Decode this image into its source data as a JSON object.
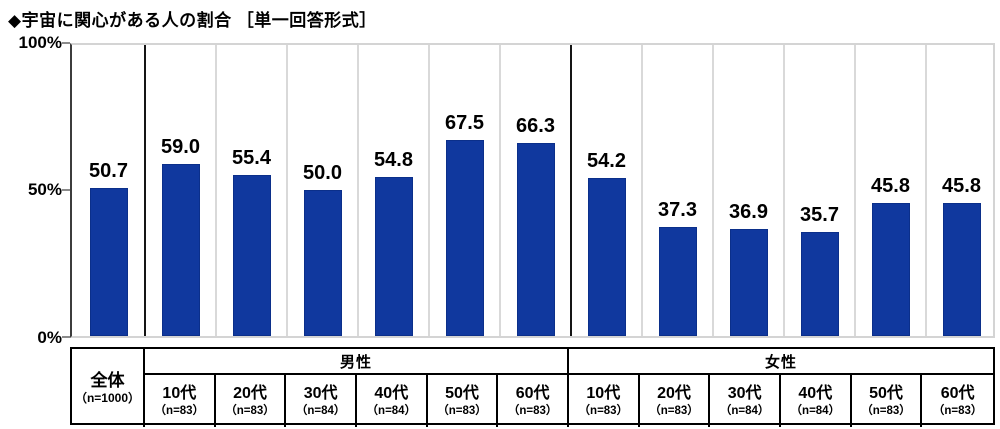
{
  "title": "◆宇宙に関心がある人の割合 ［単一回答形式］",
  "y_axis": {
    "ticks": [
      "100%",
      "50%",
      "0%"
    ]
  },
  "chart_data": {
    "type": "bar",
    "title": "◆宇宙に関心がある人の割合 ［単一回答形式］",
    "xlabel": "",
    "ylabel": "",
    "ylim": [
      0,
      100
    ],
    "ytick_labels": [
      "100%",
      "50%",
      "0%"
    ],
    "grid": "vertical-only",
    "bar_color": "#10389E",
    "categories": [
      "全体",
      "男性 10代",
      "男性 20代",
      "男性 30代",
      "男性 40代",
      "男性 50代",
      "男性 60代",
      "女性 10代",
      "女性 20代",
      "女性 30代",
      "女性 40代",
      "女性 50代",
      "女性 60代"
    ],
    "values": [
      50.7,
      59.0,
      55.4,
      50.0,
      54.8,
      67.5,
      66.3,
      54.2,
      37.3,
      36.9,
      35.7,
      45.8,
      45.8
    ],
    "value_labels": [
      "50.7",
      "59.0",
      "55.4",
      "50.0",
      "54.8",
      "67.5",
      "66.3",
      "54.2",
      "37.3",
      "36.9",
      "35.7",
      "45.8",
      "45.8"
    ]
  },
  "axis_table": {
    "overall": {
      "label": "全体",
      "n": "（n=1000）"
    },
    "groups": [
      {
        "label": "男性",
        "columns": [
          {
            "age": "10代",
            "n": "（n=83）"
          },
          {
            "age": "20代",
            "n": "（n=83）"
          },
          {
            "age": "30代",
            "n": "（n=84）"
          },
          {
            "age": "40代",
            "n": "（n=84）"
          },
          {
            "age": "50代",
            "n": "（n=83）"
          },
          {
            "age": "60代",
            "n": "（n=83）"
          }
        ]
      },
      {
        "label": "女性",
        "columns": [
          {
            "age": "10代",
            "n": "（n=83）"
          },
          {
            "age": "20代",
            "n": "（n=83）"
          },
          {
            "age": "30代",
            "n": "（n=84）"
          },
          {
            "age": "40代",
            "n": "（n=84）"
          },
          {
            "age": "50代",
            "n": "（n=83）"
          },
          {
            "age": "60代",
            "n": "（n=83）"
          }
        ]
      }
    ]
  }
}
